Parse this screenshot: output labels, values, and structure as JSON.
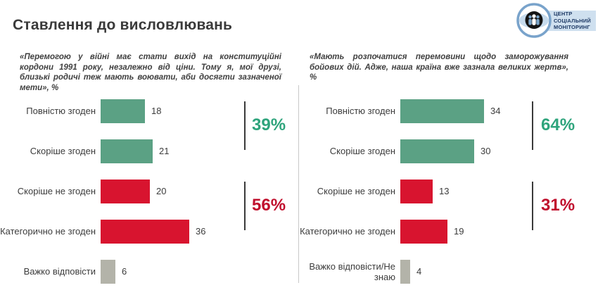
{
  "header": {
    "title": "Ставлення до висловлювань"
  },
  "logo": {
    "name": "Центр Соціальний Моніторинг",
    "lines": [
      "ЦЕНТР",
      "СОЦІАЛЬНИЙ",
      "МОНІТОРИНГ"
    ]
  },
  "colors": {
    "agree": "#5ba184",
    "disagree": "#d8142f",
    "neutral": "#b3b3a9",
    "agree_total": "#2ea47c",
    "disagree_total": "#c00f2d",
    "title_text": "#3a3a3a",
    "divider": "#c9c9c9",
    "logo_blue": "#79a3cb",
    "logo_band": "#cfe0ef",
    "logo_text": "#1e3a66"
  },
  "chart_data": [
    {
      "type": "bar",
      "orientation": "horizontal",
      "title": "«Перемогою у війні має стати вихід на конституційні кордони 1991 року, незалежно від ціни. Тому я, мої друзі, близькі родичі теж мають воювати, аби досягти зазначеної мети», %",
      "categories": [
        "Повністю згоден",
        "Скоріше згоден",
        "Скоріше не згоден",
        "Категорично не згоден",
        "Важко відповісти"
      ],
      "values": [
        18,
        21,
        20,
        36,
        6
      ],
      "bar_colors": [
        "agree",
        "agree",
        "disagree",
        "disagree",
        "neutral"
      ],
      "groups": [
        {
          "label": "39%",
          "rows": [
            0,
            1
          ],
          "color": "agree_total"
        },
        {
          "label": "56%",
          "rows": [
            2,
            3
          ],
          "color": "disagree_total"
        }
      ],
      "xlim": [
        0,
        40
      ],
      "value_labels": true,
      "grid": false,
      "legend": false
    },
    {
      "type": "bar",
      "orientation": "horizontal",
      "title": "«Мають розпочатися перемовини щодо заморожування бойових дій. Адже, наша країна вже зазнала великих жертв», %",
      "categories": [
        "Повністю згоден",
        "Скоріше згоден",
        "Скоріше не згоден",
        "Категорично не згоден",
        "Важко відповісти/Не знаю"
      ],
      "values": [
        34,
        30,
        13,
        19,
        4
      ],
      "bar_colors": [
        "agree",
        "agree",
        "disagree",
        "disagree",
        "neutral"
      ],
      "groups": [
        {
          "label": "64%",
          "rows": [
            0,
            1
          ],
          "color": "agree_total"
        },
        {
          "label": "31%",
          "rows": [
            2,
            3
          ],
          "color": "disagree_total"
        }
      ],
      "xlim": [
        0,
        40
      ],
      "value_labels": true,
      "grid": false,
      "legend": false
    }
  ]
}
